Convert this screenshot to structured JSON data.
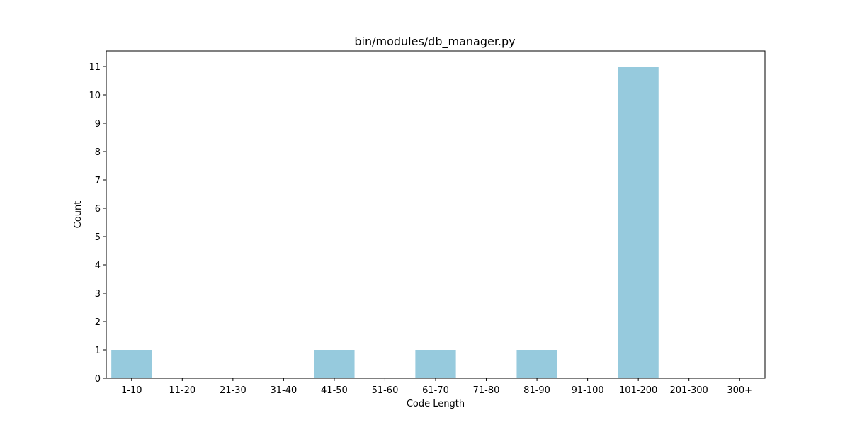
{
  "chart_data": {
    "type": "bar",
    "title": "bin/modules/db_manager.py",
    "xlabel": "Code Length",
    "ylabel": "Count",
    "categories": [
      "1-10",
      "11-20",
      "21-30",
      "31-40",
      "41-50",
      "51-60",
      "61-70",
      "71-80",
      "81-90",
      "91-100",
      "101-200",
      "201-300",
      "300+"
    ],
    "values": [
      1,
      0,
      0,
      0,
      1,
      0,
      1,
      0,
      1,
      0,
      11,
      0,
      0
    ],
    "ylim": [
      0,
      11.55
    ],
    "yticks": [
      0,
      1,
      2,
      3,
      4,
      5,
      6,
      7,
      8,
      9,
      10,
      11
    ],
    "bar_color": "#96cadd",
    "grid": false,
    "legend": "none"
  }
}
